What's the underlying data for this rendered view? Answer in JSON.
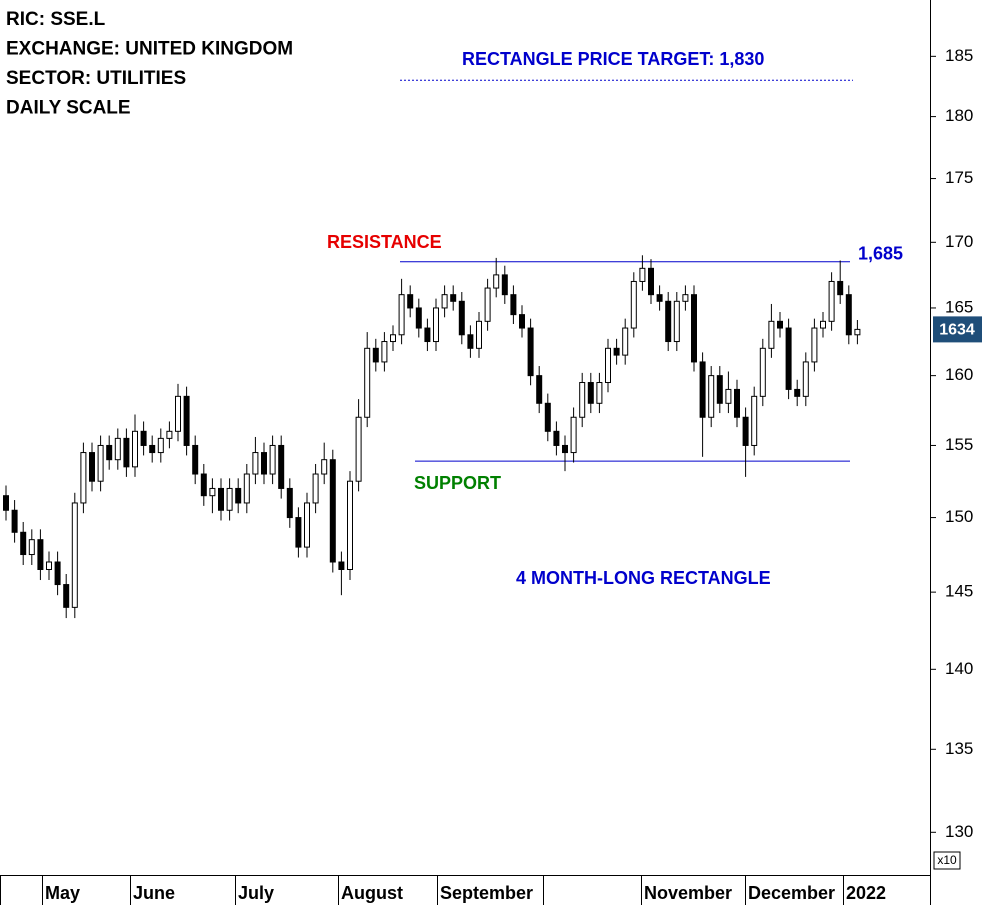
{
  "chart_data": {
    "type": "candlestick",
    "title_lines": [
      "RIC: SSE.L",
      "EXCHANGE: UNITED KINGDOM",
      "SECTOR: UTILITIES",
      "DAILY SCALE"
    ],
    "x_labels": [
      null,
      "May",
      "June",
      "July",
      "August",
      "September",
      null,
      "November",
      "December",
      "2022"
    ],
    "open": [
      151.5,
      150.5,
      149,
      147.5,
      148.5,
      146.5,
      147,
      145.5,
      144,
      151,
      154.5,
      152.5,
      155,
      154,
      155.5,
      153.5,
      156,
      155,
      154.5,
      155.5,
      156,
      158.5,
      155,
      153,
      151.5,
      152,
      150.5,
      152,
      151,
      153,
      154.5,
      153,
      155,
      152,
      150,
      148,
      151,
      153,
      154,
      147,
      146.5,
      152.5,
      157,
      162,
      161,
      162.5,
      163,
      166,
      165,
      163.5,
      162.5,
      165,
      166,
      165.5,
      163,
      162,
      164,
      166.5,
      167.5,
      166,
      164.5,
      163.5,
      160,
      158,
      156,
      155,
      154.5,
      157,
      159.5,
      158,
      159.5,
      162,
      161.5,
      163.5,
      167,
      168,
      166,
      165.5,
      162.5,
      165.5,
      166,
      161,
      157,
      160,
      158,
      159,
      157,
      155,
      158.5,
      162,
      164,
      163.5,
      159,
      158.5,
      161,
      163.5,
      164,
      167,
      166,
      163
    ],
    "high": [
      152.2,
      151.2,
      149.7,
      149.2,
      149.2,
      147.7,
      147.7,
      146.2,
      151.7,
      155.2,
      155.2,
      155.7,
      155.7,
      156.2,
      156.2,
      157.2,
      156.7,
      155.7,
      156.2,
      156.7,
      159.4,
      159.2,
      155.7,
      153.7,
      152.7,
      152.7,
      152.7,
      152.7,
      153.7,
      155.6,
      155.2,
      155.7,
      155.7,
      152.7,
      150.7,
      151.7,
      153.7,
      155.2,
      154.7,
      147.7,
      153.2,
      158.3,
      163.2,
      162.7,
      163.2,
      163.7,
      167.2,
      166.7,
      165.7,
      164.2,
      165.7,
      166.7,
      166.7,
      166.2,
      163.7,
      164.7,
      167.2,
      168.8,
      168.2,
      166.7,
      165.2,
      164.2,
      160.7,
      158.7,
      156.7,
      155.7,
      157.7,
      160.2,
      160.2,
      160.2,
      162.7,
      162.7,
      164.2,
      167.7,
      169.0,
      168.7,
      166.7,
      166.2,
      166.2,
      166.7,
      166.7,
      161.7,
      160.7,
      160.7,
      160.3,
      159.7,
      157.7,
      159.2,
      162.7,
      165.3,
      164.7,
      164.2,
      159.7,
      161.7,
      164.2,
      164.7,
      167.7,
      168.6,
      166.7,
      164.1
    ],
    "low": [
      149.8,
      148.3,
      146.8,
      146.8,
      145.8,
      145.8,
      144.8,
      143.3,
      143.3,
      150.3,
      151.8,
      151.8,
      153.3,
      153.3,
      152.8,
      152.8,
      154.3,
      153.8,
      153.8,
      154.8,
      155.3,
      154.3,
      152.3,
      150.8,
      150.3,
      149.8,
      149.8,
      150.3,
      150.3,
      152.3,
      152.3,
      152.3,
      151.3,
      149.3,
      147.3,
      147.3,
      150.3,
      152.3,
      146.3,
      144.8,
      145.8,
      151.8,
      156.3,
      160.3,
      160.3,
      161.8,
      162.3,
      164.3,
      162.8,
      161.8,
      161.8,
      164.3,
      164.8,
      162.3,
      161.3,
      161.3,
      163.3,
      165.8,
      165.3,
      163.8,
      162.8,
      159.3,
      157.3,
      155.3,
      154.3,
      153.2,
      153.8,
      156.3,
      157.3,
      157.3,
      158.8,
      160.8,
      160.8,
      162.8,
      166.3,
      165.3,
      164.8,
      161.8,
      161.8,
      164.8,
      160.3,
      154.2,
      156.3,
      157.3,
      157.3,
      156.3,
      152.8,
      154.3,
      157.8,
      161.3,
      162.8,
      158.3,
      157.8,
      157.8,
      160.3,
      162.8,
      163.3,
      165.3,
      162.3,
      162.3
    ],
    "close": [
      150.5,
      149,
      147.5,
      148.5,
      146.5,
      147,
      145.5,
      144,
      151,
      154.5,
      152.5,
      155,
      154,
      155.5,
      153.5,
      156,
      155,
      154.5,
      155.5,
      156,
      158.5,
      155,
      153,
      151.5,
      152,
      150.5,
      152,
      151,
      153,
      154.5,
      153,
      155,
      152,
      150,
      148,
      151,
      153,
      154,
      147,
      146.5,
      152.5,
      157,
      162,
      161,
      162.5,
      163,
      166,
      165,
      163.5,
      162.5,
      165,
      166,
      165.5,
      163,
      162,
      164,
      166.5,
      167.5,
      166,
      164.5,
      163.5,
      160,
      158,
      156,
      155,
      154.5,
      157,
      159.5,
      158,
      159.5,
      162,
      161.5,
      163.5,
      167,
      168,
      166,
      165.5,
      162.5,
      165.5,
      166,
      161,
      157,
      160,
      158,
      159,
      157,
      155,
      158.5,
      162,
      164,
      163.5,
      159,
      158.5,
      161,
      163.5,
      164,
      167,
      166,
      163,
      163.4
    ],
    "up_color": "#ffffff",
    "down_color": "#000000",
    "ylim": [
      127.5,
      189.8
    ],
    "log_scale": true,
    "yticks": [
      130,
      135,
      140,
      145,
      150,
      155,
      160,
      165,
      170,
      175,
      180,
      185
    ],
    "axis_multiplier_label": "x10",
    "last_price": {
      "value": 163.4,
      "label": "1634",
      "color": "#1f4e79"
    },
    "levels": [
      {
        "value": 168.5,
        "label": "1,685",
        "color": "#0000cc",
        "style": "solid"
      },
      {
        "value": 153.9,
        "color": "#0000cc",
        "style": "solid"
      },
      {
        "value": 183,
        "color": "#0000cc",
        "style": "dotted"
      }
    ],
    "annotations": [
      {
        "text": "RESISTANCE",
        "color": "#e60000"
      },
      {
        "text": "SUPPORT",
        "color": "#008000"
      },
      {
        "text": "4 MONTH-LONG RECTANGLE",
        "color": "#0000cc"
      },
      {
        "text": "RECTANGLE PRICE TARGET: 1,830",
        "color": "#0000cc"
      }
    ]
  }
}
